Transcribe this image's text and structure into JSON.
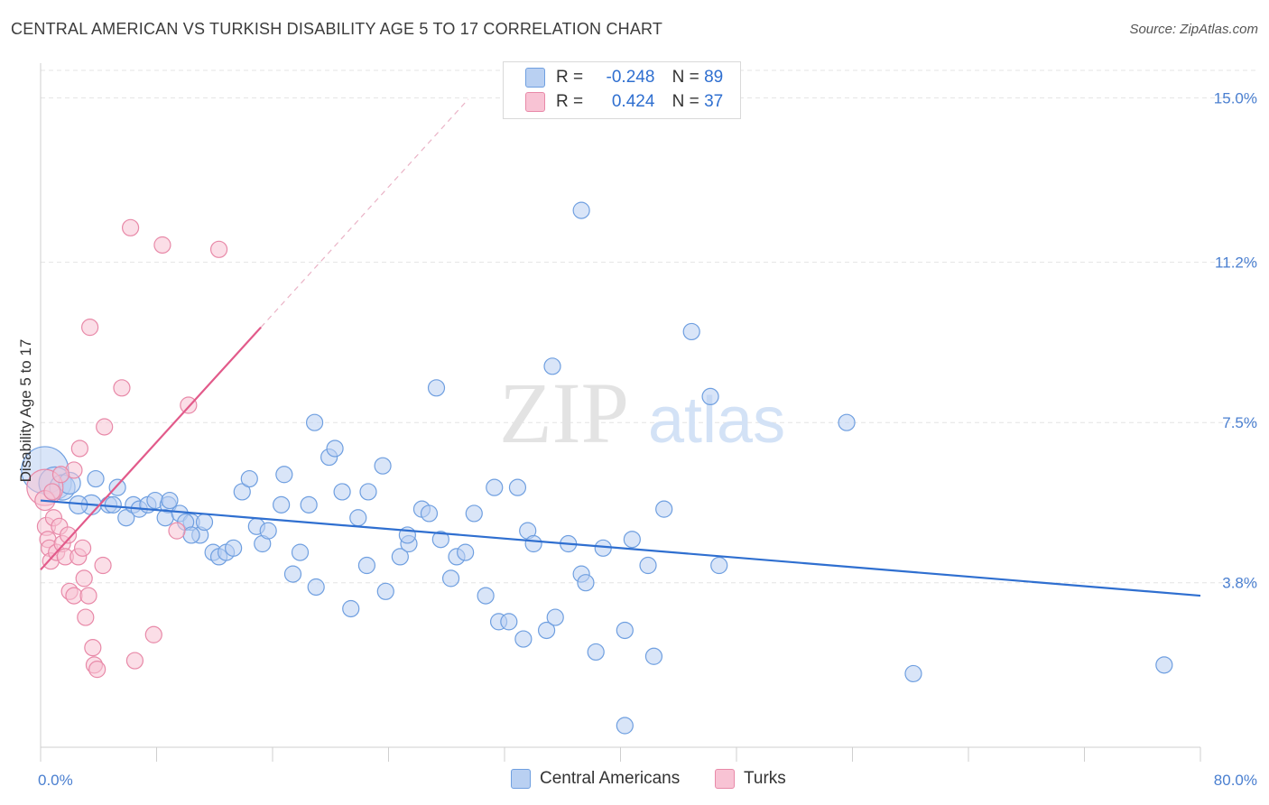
{
  "title": "CENTRAL AMERICAN VS TURKISH DISABILITY AGE 5 TO 17 CORRELATION CHART",
  "source": "Source: ZipAtlas.com",
  "watermark": {
    "zip": "ZIP",
    "atlas": "atlas"
  },
  "legend": {
    "r_label": "R =",
    "n_label": "N =",
    "rows": [
      {
        "r": "-0.248",
        "n": "89",
        "fill": "#b9d0f2",
        "stroke": "#6f9fe0"
      },
      {
        "r": "0.424",
        "n": "37",
        "fill": "#f8c3d4",
        "stroke": "#e889a8"
      }
    ]
  },
  "chart_data": {
    "type": "scatter",
    "title": "CENTRAL AMERICAN VS TURKISH DISABILITY AGE 5 TO 17 CORRELATION CHART",
    "xlabel": "",
    "ylabel": "Disability Age 5 to 17",
    "xlim": [
      0,
      80
    ],
    "ylim": [
      0,
      15.8
    ],
    "x_tick_labels": [
      "0.0%",
      "80.0%"
    ],
    "y_ticks": [
      3.8,
      7.5,
      11.2,
      15.0
    ],
    "y_tick_labels": [
      "3.8%",
      "7.5%",
      "11.2%",
      "15.0%"
    ],
    "grid": true,
    "legend_position": "top-center",
    "series": [
      {
        "name": "Central Americans",
        "color": "#6f9fe0",
        "fill": "#b9d0f2",
        "trend": {
          "x": [
            0,
            80
          ],
          "y": [
            5.7,
            3.5
          ],
          "color": "#2f6fd0"
        },
        "points": [
          [
            0.3,
            6.4,
            26
          ],
          [
            1.0,
            6.1,
            18
          ],
          [
            1.5,
            6.0,
            14
          ],
          [
            2.0,
            6.1,
            12
          ],
          [
            3.5,
            5.6,
            11
          ],
          [
            2.6,
            5.6,
            10
          ],
          [
            4.7,
            5.6,
            9
          ],
          [
            5.0,
            5.6,
            9
          ],
          [
            3.8,
            6.2,
            9
          ],
          [
            5.3,
            6.0,
            9
          ],
          [
            5.9,
            5.3,
            9
          ],
          [
            6.4,
            5.6,
            9
          ],
          [
            6.8,
            5.5,
            9
          ],
          [
            7.4,
            5.6,
            9
          ],
          [
            7.9,
            5.7,
            9
          ],
          [
            8.8,
            5.6,
            9
          ],
          [
            8.9,
            5.7,
            9
          ],
          [
            8.6,
            5.3,
            9
          ],
          [
            9.6,
            5.4,
            9
          ],
          [
            10.4,
            5.2,
            9
          ],
          [
            10.0,
            5.2,
            9
          ],
          [
            11.0,
            4.9,
            9
          ],
          [
            11.3,
            5.2,
            9
          ],
          [
            11.9,
            4.5,
            9
          ],
          [
            12.3,
            4.4,
            9
          ],
          [
            12.8,
            4.5,
            9
          ],
          [
            13.3,
            4.6,
            9
          ],
          [
            13.9,
            5.9,
            9
          ],
          [
            14.4,
            6.2,
            9
          ],
          [
            14.9,
            5.1,
            9
          ],
          [
            15.3,
            4.7,
            9
          ],
          [
            15.7,
            5.0,
            9
          ],
          [
            16.6,
            5.6,
            9
          ],
          [
            16.8,
            6.3,
            9
          ],
          [
            17.4,
            4.0,
            9
          ],
          [
            17.9,
            4.5,
            9
          ],
          [
            18.5,
            5.6,
            9
          ],
          [
            19.0,
            3.7,
            9
          ],
          [
            18.9,
            7.5,
            9
          ],
          [
            19.9,
            6.7,
            9
          ],
          [
            20.3,
            6.9,
            9
          ],
          [
            20.8,
            5.9,
            9
          ],
          [
            21.4,
            3.2,
            9
          ],
          [
            21.9,
            5.3,
            9
          ],
          [
            22.5,
            4.2,
            9
          ],
          [
            22.6,
            5.9,
            9
          ],
          [
            23.6,
            6.5,
            9
          ],
          [
            23.8,
            3.6,
            9
          ],
          [
            24.8,
            4.4,
            9
          ],
          [
            25.4,
            4.7,
            9
          ],
          [
            25.3,
            4.9,
            9
          ],
          [
            26.3,
            5.5,
            9
          ],
          [
            26.8,
            5.4,
            9
          ],
          [
            27.3,
            8.3,
            9
          ],
          [
            27.6,
            4.8,
            9
          ],
          [
            28.3,
            3.9,
            9
          ],
          [
            28.7,
            4.4,
            9
          ],
          [
            29.3,
            4.5,
            9
          ],
          [
            29.9,
            5.4,
            9
          ],
          [
            30.7,
            3.5,
            9
          ],
          [
            31.3,
            6.0,
            9
          ],
          [
            31.6,
            2.9,
            9
          ],
          [
            32.3,
            2.9,
            9
          ],
          [
            32.9,
            6.0,
            9
          ],
          [
            33.3,
            2.5,
            9
          ],
          [
            33.6,
            5.0,
            9
          ],
          [
            34.0,
            4.7,
            9
          ],
          [
            34.9,
            2.7,
            9
          ],
          [
            35.3,
            8.8,
            9
          ],
          [
            35.5,
            3.0,
            9
          ],
          [
            36.4,
            4.7,
            9
          ],
          [
            37.3,
            4.0,
            9
          ],
          [
            37.6,
            3.8,
            9
          ],
          [
            37.3,
            12.4,
            9
          ],
          [
            38.3,
            2.2,
            9
          ],
          [
            38.8,
            4.6,
            9
          ],
          [
            40.3,
            2.7,
            9
          ],
          [
            40.8,
            4.8,
            9
          ],
          [
            41.9,
            4.2,
            9
          ],
          [
            42.3,
            2.1,
            9
          ],
          [
            43.0,
            5.5,
            9
          ],
          [
            44.9,
            9.6,
            9
          ],
          [
            46.2,
            8.1,
            9
          ],
          [
            46.8,
            4.2,
            9
          ],
          [
            55.6,
            7.5,
            9
          ],
          [
            60.2,
            1.7,
            9
          ],
          [
            77.5,
            1.9,
            9
          ],
          [
            40.3,
            0.5,
            9
          ],
          [
            10.4,
            4.9,
            9
          ]
        ]
      },
      {
        "name": "Turks",
        "color": "#e889a8",
        "fill": "#f8c3d4",
        "trend": {
          "x": [
            0,
            15.2
          ],
          "y": [
            4.1,
            9.7
          ],
          "color": "#e25a8a",
          "extend_to_x": 29.5
        },
        "points": [
          [
            0.3,
            6.0,
            20
          ],
          [
            0.3,
            5.7,
            11
          ],
          [
            0.4,
            5.1,
            10
          ],
          [
            0.5,
            4.8,
            9
          ],
          [
            0.6,
            4.6,
            9
          ],
          [
            0.7,
            4.3,
            9
          ],
          [
            0.9,
            5.3,
            9
          ],
          [
            1.1,
            4.5,
            9
          ],
          [
            1.3,
            5.1,
            9
          ],
          [
            1.5,
            4.7,
            9
          ],
          [
            1.7,
            4.4,
            9
          ],
          [
            1.9,
            4.9,
            9
          ],
          [
            2.0,
            3.6,
            9
          ],
          [
            2.3,
            6.4,
            9
          ],
          [
            2.3,
            3.5,
            9
          ],
          [
            2.6,
            4.4,
            9
          ],
          [
            2.7,
            6.9,
            9
          ],
          [
            2.9,
            4.6,
            9
          ],
          [
            3.0,
            3.9,
            9
          ],
          [
            3.1,
            3.0,
            9
          ],
          [
            3.3,
            3.5,
            9
          ],
          [
            3.4,
            9.7,
            9
          ],
          [
            3.6,
            2.3,
            9
          ],
          [
            3.7,
            1.9,
            9
          ],
          [
            3.9,
            1.8,
            9
          ],
          [
            4.3,
            4.2,
            9
          ],
          [
            4.4,
            7.4,
            9
          ],
          [
            5.6,
            8.3,
            9
          ],
          [
            6.2,
            12.0,
            9
          ],
          [
            6.5,
            2.0,
            9
          ],
          [
            7.8,
            2.6,
            9
          ],
          [
            8.4,
            11.6,
            9
          ],
          [
            9.4,
            5.0,
            9
          ],
          [
            10.2,
            7.9,
            9
          ],
          [
            12.3,
            11.5,
            9
          ],
          [
            0.8,
            5.9,
            9
          ],
          [
            1.4,
            6.3,
            9
          ]
        ]
      }
    ]
  }
}
